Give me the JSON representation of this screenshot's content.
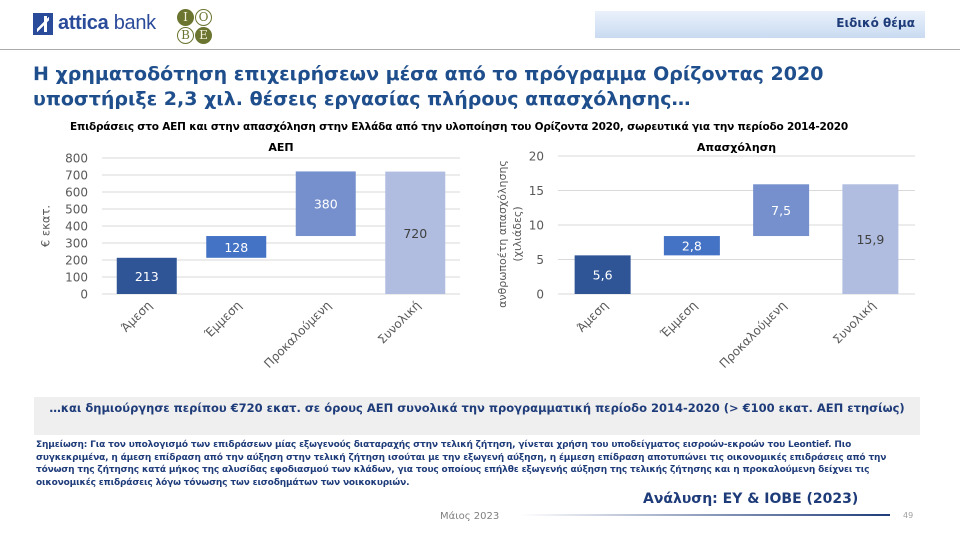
{
  "header": {
    "brand_name_bold": "attica",
    "brand_name_light": " bank",
    "partner_logo_letters": [
      "I",
      "O",
      "B",
      "E"
    ],
    "section_label": "Ειδικό θέμα"
  },
  "title": "Η χρηματοδότηση επιχειρήσεων μέσα από το πρόγραμμα Ορίζοντας 2020 υποστήριξε 2,3 χιλ. θέσεις εργασίας πλήρους απασχόλησης…",
  "subtitle": "Επιδράσεις στο ΑΕΠ και στην απασχόληση στην Ελλάδα από την υλοποίηση του Ορίζοντα 2020,  σωρευτικά για την περίοδο 2014-2020",
  "colors": {
    "bar_direct": "#2f5597",
    "bar_indirect": "#4472c4",
    "bar_induced": "#7590cc",
    "bar_total": "#b0bde0",
    "grid": "#d9d9d9",
    "axis_text": "#595959"
  },
  "chart_data": [
    {
      "type": "bar",
      "subtype": "waterfall",
      "title": "ΑΕΠ",
      "ylabel": "€ εκατ.",
      "xlabel": "",
      "categories": [
        "Άμεση",
        "Έμμεση",
        "Προκαλούμενη",
        "Συνολική"
      ],
      "values": [
        213,
        128,
        380,
        720
      ],
      "data_labels": [
        "213",
        "128",
        "380",
        "720"
      ],
      "bases": [
        0,
        213,
        341,
        0
      ],
      "ylim": [
        0,
        800
      ],
      "yticks": [
        0,
        100,
        200,
        300,
        400,
        500,
        600,
        700,
        800
      ],
      "grid": true,
      "legend": "none"
    },
    {
      "type": "bar",
      "subtype": "waterfall",
      "title": "Απασχόληση",
      "ylabel": "ανθρωποέτη απασχόλησης (χιλιάδες)",
      "xlabel": "",
      "categories": [
        "Άμεση",
        "Έμμεση",
        "Προκαλούμενη",
        "Συνολική"
      ],
      "values": [
        5.6,
        2.8,
        7.5,
        15.9
      ],
      "data_labels": [
        "5,6",
        "2,8",
        "7,5",
        "15,9"
      ],
      "bases": [
        0,
        5.6,
        8.4,
        0
      ],
      "ylim": [
        0,
        20
      ],
      "yticks": [
        0,
        5,
        10,
        15,
        20
      ],
      "grid": true,
      "legend": "none"
    }
  ],
  "callout": "…και δημιούργησε περίπου €720 εκατ. σε όρους ΑΕΠ συνολικά την προγραμματική περίοδο 2014-2020 (> €100 εκατ. ΑΕΠ ετησίως)",
  "note": "Σημείωση: Για τον υπολογισμό των επιδράσεων  μίας εξωγενούς διαταραχής  στην τελική ζήτηση, γίνεται χρήση του υποδείγματος εισροών-εκροών  του Leontief.  Πιο συγκεκριμένα, η άμεση επίδραση  από  την αύξηση στην τελική ζήτηση ισούται με την εξωγενή αύξηση, η έμμεση επίδραση αποτυπώνει τις οικονομικές  επιδράσεις  από την τόνωση της ζήτησης κατά μήκος της αλυσίδας εφοδιασμού των κλάδων, για τους οποίους  επήλθε εξωγενής αύξηση της τελικής ζήτησης και η προκαλούμενη δείχνει  τις οικονομικές  επιδράσεις  λόγω τόνωσης των εισοδημάτων των νοικοκυριών.",
  "source": "Ανάλυση: EY & IOBE (2023)",
  "footer": {
    "date": "Μάιος 2023",
    "page_number": "49"
  }
}
